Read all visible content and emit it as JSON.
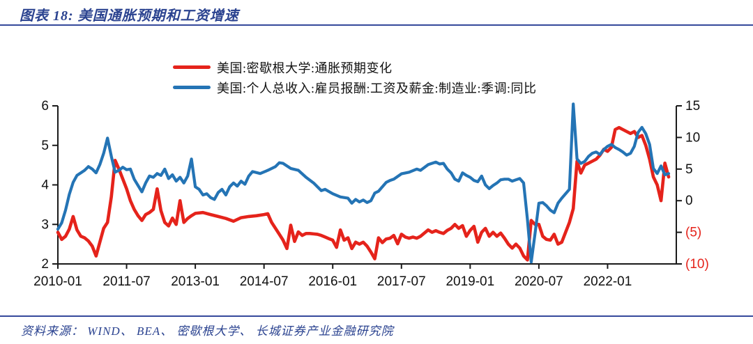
{
  "page": {
    "title": "图表 18:  美国通胀预期和工资增速",
    "source": "资料来源： WIND、 BEA、 密歇根大学、 长城证券产业金融研究院"
  },
  "colors": {
    "navy_text": "#2b4390",
    "rule_line": "#35499b",
    "red_series": "#e5231b",
    "blue_series": "#2474b5",
    "axis": "#1a1a1a",
    "tick_label": "#111111",
    "negative_tick": "#e5231b"
  },
  "chart_data": {
    "type": "line",
    "x_unit": "months since 2010-01",
    "x_range": [
      0,
      162
    ],
    "x_ticks": [
      {
        "m": 0,
        "label": "2010-01"
      },
      {
        "m": 18,
        "label": "2011-07"
      },
      {
        "m": 36,
        "label": "2013-01"
      },
      {
        "m": 54,
        "label": "2014-07"
      },
      {
        "m": 72,
        "label": "2016-01"
      },
      {
        "m": 90,
        "label": "2017-07"
      },
      {
        "m": 108,
        "label": "2019-01"
      },
      {
        "m": 126,
        "label": "2020-07"
      },
      {
        "m": 144,
        "label": "2022-01"
      }
    ],
    "axes": {
      "left": {
        "range": [
          2,
          6
        ],
        "ticks": [
          {
            "value": 6,
            "label": "6"
          },
          {
            "value": 5,
            "label": "5"
          },
          {
            "value": 4,
            "label": "4"
          },
          {
            "value": 3,
            "label": "3"
          },
          {
            "value": 2,
            "label": "2"
          }
        ]
      },
      "right": {
        "range": [
          -10,
          15
        ],
        "ticks": [
          {
            "value": 15,
            "label": "15",
            "negative": false
          },
          {
            "value": 10,
            "label": "10",
            "negative": false
          },
          {
            "value": 5,
            "label": "5",
            "negative": false
          },
          {
            "value": 0,
            "label": "0",
            "negative": false
          },
          {
            "value": -5,
            "label": "(5)",
            "negative": true
          },
          {
            "value": -10,
            "label": "(10)",
            "negative": true
          }
        ]
      }
    },
    "grid": false,
    "legend_position": "top-center",
    "series": [
      {
        "name": "美国:密歇根大学:通胀预期变化",
        "axis": "left",
        "color": "#e5231b",
        "stroke_width": 4.6,
        "points": [
          [
            0,
            2.8
          ],
          [
            1,
            2.62
          ],
          [
            2,
            2.7
          ],
          [
            3,
            2.88
          ],
          [
            4,
            3.2
          ],
          [
            5,
            2.86
          ],
          [
            6,
            2.7
          ],
          [
            7,
            2.66
          ],
          [
            8,
            2.58
          ],
          [
            9,
            2.45
          ],
          [
            10,
            2.2
          ],
          [
            11,
            2.55
          ],
          [
            12,
            2.9
          ],
          [
            13,
            3.05
          ],
          [
            14,
            3.7
          ],
          [
            15,
            4.62
          ],
          [
            16,
            4.4
          ],
          [
            17,
            4.15
          ],
          [
            18,
            3.9
          ],
          [
            19,
            3.6
          ],
          [
            20,
            3.38
          ],
          [
            21,
            3.22
          ],
          [
            22,
            3.1
          ],
          [
            23,
            3.25
          ],
          [
            24,
            3.3
          ],
          [
            25,
            3.38
          ],
          [
            26,
            3.9
          ],
          [
            27,
            3.35
          ],
          [
            28,
            3.05
          ],
          [
            29,
            2.96
          ],
          [
            30,
            3.16
          ],
          [
            31,
            3.0
          ],
          [
            32,
            3.6
          ],
          [
            33,
            3.05
          ],
          [
            34,
            3.15
          ],
          [
            35,
            3.22
          ],
          [
            36,
            3.28
          ],
          [
            38,
            3.3
          ],
          [
            40,
            3.25
          ],
          [
            42,
            3.2
          ],
          [
            44,
            3.15
          ],
          [
            46,
            3.08
          ],
          [
            48,
            3.17
          ],
          [
            50,
            3.2
          ],
          [
            52,
            3.22
          ],
          [
            54,
            3.25
          ],
          [
            55,
            3.27
          ],
          [
            56,
            3.05
          ],
          [
            57,
            2.9
          ],
          [
            58,
            2.75
          ],
          [
            59,
            2.6
          ],
          [
            60,
            2.39
          ],
          [
            61,
            2.98
          ],
          [
            62,
            2.57
          ],
          [
            63,
            2.81
          ],
          [
            64,
            2.72
          ],
          [
            65,
            2.77
          ],
          [
            66,
            2.77
          ],
          [
            67,
            2.76
          ],
          [
            68,
            2.75
          ],
          [
            69,
            2.72
          ],
          [
            70,
            2.68
          ],
          [
            71,
            2.64
          ],
          [
            72,
            2.6
          ],
          [
            73,
            2.42
          ],
          [
            74,
            2.86
          ],
          [
            75,
            2.6
          ],
          [
            76,
            2.66
          ],
          [
            77,
            2.39
          ],
          [
            78,
            2.55
          ],
          [
            79,
            2.5
          ],
          [
            80,
            2.55
          ],
          [
            81,
            2.45
          ],
          [
            82,
            2.3
          ],
          [
            83,
            2.13
          ],
          [
            84,
            2.66
          ],
          [
            85,
            2.54
          ],
          [
            86,
            2.63
          ],
          [
            87,
            2.65
          ],
          [
            88,
            2.72
          ],
          [
            89,
            2.51
          ],
          [
            90,
            2.75
          ],
          [
            91,
            2.68
          ],
          [
            92,
            2.65
          ],
          [
            93,
            2.68
          ],
          [
            94,
            2.65
          ],
          [
            95,
            2.7
          ],
          [
            96,
            2.78
          ],
          [
            97,
            2.86
          ],
          [
            98,
            2.8
          ],
          [
            99,
            2.84
          ],
          [
            100,
            2.8
          ],
          [
            101,
            2.77
          ],
          [
            102,
            2.85
          ],
          [
            103,
            2.9
          ],
          [
            104,
            3.0
          ],
          [
            105,
            2.9
          ],
          [
            106,
            2.97
          ],
          [
            107,
            2.7
          ],
          [
            108,
            2.85
          ],
          [
            109,
            2.95
          ],
          [
            110,
            2.55
          ],
          [
            111,
            2.8
          ],
          [
            112,
            2.9
          ],
          [
            113,
            2.7
          ],
          [
            114,
            2.8
          ],
          [
            115,
            2.7
          ],
          [
            116,
            2.78
          ],
          [
            117,
            2.65
          ],
          [
            118,
            2.5
          ],
          [
            119,
            2.4
          ],
          [
            120,
            2.5
          ],
          [
            121,
            2.4
          ],
          [
            122,
            2.2
          ],
          [
            123,
            2.1
          ],
          [
            124,
            3.1
          ],
          [
            125,
            3.0
          ],
          [
            126,
            3.0
          ],
          [
            127,
            2.7
          ],
          [
            128,
            2.62
          ],
          [
            129,
            2.6
          ],
          [
            130,
            2.75
          ],
          [
            131,
            2.5
          ],
          [
            132,
            2.55
          ],
          [
            133,
            2.8
          ],
          [
            134,
            3.05
          ],
          [
            135,
            3.4
          ],
          [
            136,
            4.6
          ],
          [
            137,
            4.3
          ],
          [
            138,
            4.5
          ],
          [
            139,
            4.55
          ],
          [
            140,
            4.6
          ],
          [
            141,
            4.65
          ],
          [
            142,
            4.75
          ],
          [
            143,
            4.9
          ],
          [
            144,
            4.85
          ],
          [
            145,
            4.95
          ],
          [
            146,
            5.4
          ],
          [
            147,
            5.45
          ],
          [
            148,
            5.4
          ],
          [
            149,
            5.35
          ],
          [
            150,
            5.3
          ],
          [
            151,
            5.35
          ],
          [
            152,
            5.2
          ],
          [
            153,
            5.25
          ],
          [
            154,
            5.0
          ],
          [
            155,
            4.65
          ],
          [
            156,
            4.2
          ],
          [
            157,
            4.0
          ],
          [
            158,
            3.6
          ],
          [
            159,
            4.55
          ],
          [
            160,
            4.2
          ]
        ]
      },
      {
        "name": "美国:个人总收入:雇员报酬:工资及薪金:制造业:季调:同比",
        "axis": "right",
        "color": "#2474b5",
        "stroke_width": 4.2,
        "points": [
          [
            0,
            -4.5
          ],
          [
            1,
            -3.5
          ],
          [
            2,
            -1.5
          ],
          [
            3,
            1.0
          ],
          [
            4,
            2.9
          ],
          [
            5,
            4.0
          ],
          [
            6,
            4.4
          ],
          [
            7,
            4.8
          ],
          [
            8,
            5.4
          ],
          [
            9,
            5.0
          ],
          [
            10,
            4.4
          ],
          [
            11,
            5.7
          ],
          [
            12,
            7.5
          ],
          [
            13,
            9.9
          ],
          [
            14,
            7.0
          ],
          [
            15,
            4.5
          ],
          [
            16,
            4.8
          ],
          [
            17,
            5.3
          ],
          [
            18,
            4.9
          ],
          [
            19,
            5.0
          ],
          [
            20,
            3.4
          ],
          [
            21,
            2.4
          ],
          [
            22,
            1.4
          ],
          [
            23,
            2.8
          ],
          [
            24,
            3.9
          ],
          [
            25,
            3.7
          ],
          [
            26,
            4.3
          ],
          [
            27,
            4.0
          ],
          [
            28,
            5.0
          ],
          [
            29,
            3.5
          ],
          [
            30,
            4.1
          ],
          [
            31,
            3.1
          ],
          [
            32,
            3.7
          ],
          [
            33,
            2.8
          ],
          [
            34,
            3.9
          ],
          [
            35,
            6.6
          ],
          [
            36,
            2.2
          ],
          [
            37,
            1.8
          ],
          [
            38,
            0.9
          ],
          [
            39,
            1.1
          ],
          [
            40,
            0.5
          ],
          [
            41,
            0.2
          ],
          [
            42,
            1.3
          ],
          [
            43,
            1.8
          ],
          [
            44,
            0.9
          ],
          [
            45,
            2.2
          ],
          [
            46,
            2.8
          ],
          [
            47,
            2.3
          ],
          [
            48,
            3.1
          ],
          [
            49,
            2.6
          ],
          [
            50,
            3.9
          ],
          [
            51,
            4.6
          ],
          [
            53,
            4.3
          ],
          [
            55,
            4.8
          ],
          [
            57,
            5.4
          ],
          [
            58,
            6.0
          ],
          [
            59,
            5.9
          ],
          [
            61,
            5.1
          ],
          [
            63,
            4.8
          ],
          [
            65,
            3.7
          ],
          [
            67,
            2.8
          ],
          [
            69,
            1.6
          ],
          [
            70,
            1.8
          ],
          [
            72,
            1.1
          ],
          [
            74,
            0.6
          ],
          [
            76,
            0.4
          ],
          [
            77,
            -0.4
          ],
          [
            78,
            0.2
          ],
          [
            79,
            -0.2
          ],
          [
            80,
            0.1
          ],
          [
            81,
            -0.3
          ],
          [
            82,
            0.0
          ],
          [
            83,
            1.2
          ],
          [
            84,
            1.5
          ],
          [
            85,
            2.2
          ],
          [
            86,
            2.9
          ],
          [
            87,
            3.2
          ],
          [
            88,
            3.4
          ],
          [
            90,
            4.25
          ],
          [
            92,
            4.5
          ],
          [
            94,
            5.0
          ],
          [
            95,
            4.8
          ],
          [
            97,
            5.7
          ],
          [
            99,
            6.1
          ],
          [
            100,
            5.8
          ],
          [
            101,
            5.9
          ],
          [
            102,
            5.0
          ],
          [
            103,
            4.4
          ],
          [
            104,
            3.4
          ],
          [
            105,
            3.1
          ],
          [
            106,
            4.4
          ],
          [
            107,
            4.0
          ],
          [
            108,
            3.7
          ],
          [
            109,
            3.2
          ],
          [
            110,
            3.0
          ],
          [
            111,
            3.9
          ],
          [
            112,
            2.5
          ],
          [
            113,
            1.9
          ],
          [
            114,
            2.4
          ],
          [
            115,
            2.8
          ],
          [
            116,
            3.3
          ],
          [
            117,
            3.4
          ],
          [
            118,
            3.4
          ],
          [
            119,
            3.1
          ],
          [
            120,
            3.3
          ],
          [
            121,
            3.5
          ],
          [
            122,
            2.8
          ],
          [
            123,
            -3.0
          ],
          [
            124,
            -9.7
          ],
          [
            125,
            -5.2
          ],
          [
            126,
            -0.4
          ],
          [
            127,
            -0.3
          ],
          [
            128,
            -0.8
          ],
          [
            129,
            -1.5
          ],
          [
            130,
            -1.9
          ],
          [
            131,
            -0.4
          ],
          [
            132,
            0.4
          ],
          [
            133,
            1.1
          ],
          [
            134,
            1.8
          ],
          [
            135,
            15.3
          ],
          [
            136,
            6.6
          ],
          [
            137,
            5.9
          ],
          [
            138,
            6.2
          ],
          [
            139,
            7.0
          ],
          [
            140,
            7.5
          ],
          [
            141,
            7.7
          ],
          [
            142,
            7.3
          ],
          [
            143,
            8.1
          ],
          [
            144,
            8.6
          ],
          [
            145,
            8.9
          ],
          [
            146,
            8.4
          ],
          [
            147,
            8.1
          ],
          [
            148,
            7.7
          ],
          [
            149,
            7.2
          ],
          [
            150,
            7.5
          ],
          [
            151,
            8.6
          ],
          [
            152,
            10.8
          ],
          [
            153,
            11.6
          ],
          [
            154,
            10.6
          ],
          [
            155,
            8.9
          ],
          [
            156,
            5.1
          ],
          [
            157,
            4.3
          ],
          [
            158,
            5.5
          ],
          [
            159,
            4.1
          ],
          [
            160,
            4.3
          ]
        ]
      }
    ]
  }
}
